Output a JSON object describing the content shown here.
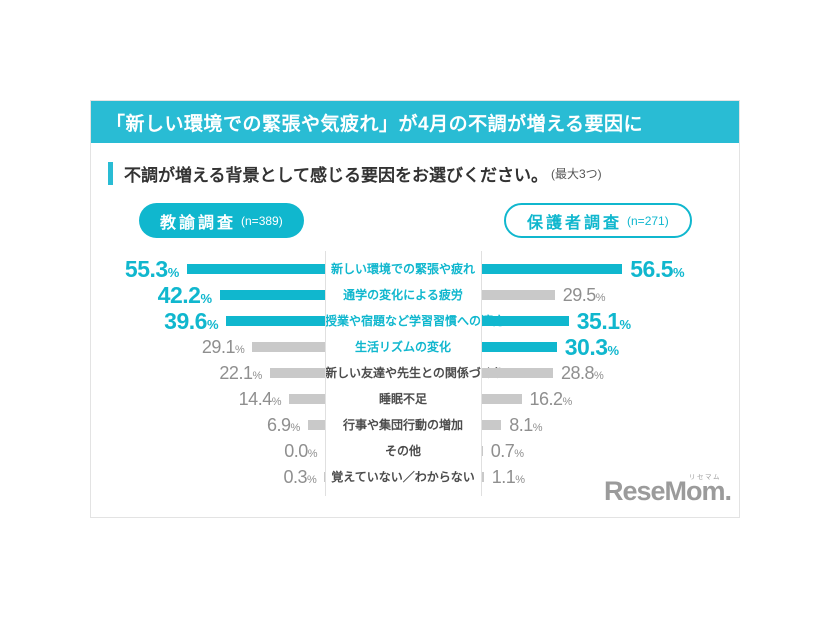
{
  "colors": {
    "header_teal": "#29bcd4",
    "accent_teal": "#10b7ce",
    "gray_bar": "#c9c9c9",
    "gray_text": "#8f8f8f",
    "dark_text": "#333333",
    "logo_gray": "#9b9b9b",
    "card_border": "#e3e3e3"
  },
  "header": {
    "title": "「新しい環境での緊張や気疲れ」が4月の不調が増える要因に"
  },
  "question": {
    "text": "不調が増える背景として感じる要因をお選びください。",
    "note": "(最大3つ)"
  },
  "groups": {
    "teacher": {
      "label": "教諭調査",
      "n": "(n=389)"
    },
    "parent": {
      "label": "保護者調査",
      "n": "(n=271)"
    }
  },
  "chart_data": {
    "type": "bar",
    "layout": "butterfly",
    "unit": "%",
    "xlim": [
      0,
      60
    ],
    "categories": [
      "新しい環境での緊張や疲れ",
      "通学の変化による疲労",
      "授業や宿題など学習習慣への適応",
      "生活リズムの変化",
      "新しい友達や先生との関係づくり",
      "睡眠不足",
      "行事や集団行動の増加",
      "その他",
      "覚えていない／わからない"
    ],
    "category_highlight": [
      true,
      true,
      true,
      true,
      false,
      false,
      false,
      false,
      false
    ],
    "series": [
      {
        "name": "教諭調査",
        "n": 389,
        "side": "left",
        "values": [
          55.3,
          42.2,
          39.6,
          29.1,
          22.1,
          14.4,
          6.9,
          0.0,
          0.3
        ],
        "highlight": [
          true,
          true,
          true,
          false,
          false,
          false,
          false,
          false,
          false
        ]
      },
      {
        "name": "保護者調査",
        "n": 271,
        "side": "right",
        "values": [
          56.5,
          29.5,
          35.1,
          30.3,
          28.8,
          16.2,
          8.1,
          0.7,
          1.1
        ],
        "highlight": [
          true,
          false,
          true,
          true,
          false,
          false,
          false,
          false,
          false
        ]
      }
    ]
  },
  "logo": {
    "text": "ReseMom.",
    "ruby": "リセマム"
  }
}
